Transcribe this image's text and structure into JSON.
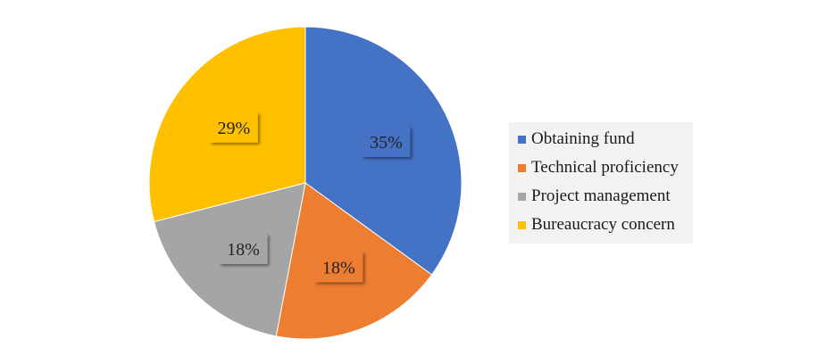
{
  "chart_data": {
    "type": "pie",
    "categories": [
      "Obtaining fund",
      "Technical proficiency",
      "Project management",
      "Bureaucracy concern"
    ],
    "values": [
      35,
      18,
      18,
      29
    ],
    "labels": [
      "35%",
      "18%",
      "18%",
      "29%"
    ],
    "colors": [
      "#4472c4",
      "#ed7d31",
      "#a5a5a5",
      "#ffc000"
    ],
    "start_angle_deg": 0,
    "direction": "clockwise",
    "legend_placement": "right"
  }
}
